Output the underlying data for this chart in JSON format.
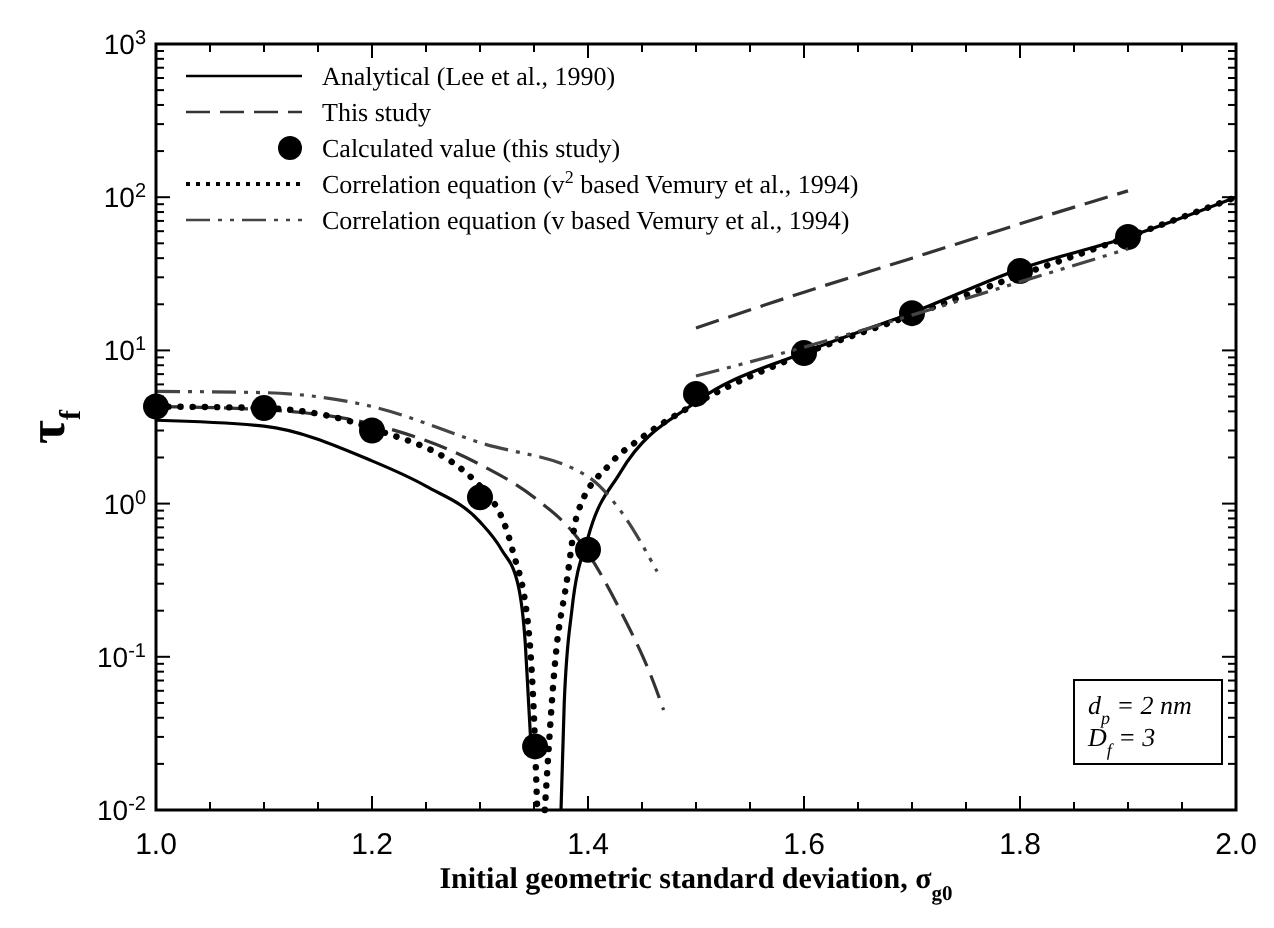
{
  "chart_data": {
    "type": "line",
    "xlabel": "Initial geometric standard deviation, σ$_{g0}$",
    "ylabel": "τ$_{f}$",
    "log": "y",
    "xlim": [
      1.0,
      2.0
    ],
    "ylim": [
      0.01,
      1000
    ],
    "xticks": [
      {
        "value": 1.0,
        "label": "1.0"
      },
      {
        "value": 1.05,
        "label": null
      },
      {
        "value": 1.1,
        "label": null
      },
      {
        "value": 1.15,
        "label": null
      },
      {
        "value": 1.2,
        "label": "1.2"
      },
      {
        "value": 1.25,
        "label": null
      },
      {
        "value": 1.3,
        "label": null
      },
      {
        "value": 1.35,
        "label": null
      },
      {
        "value": 1.4,
        "label": "1.4"
      },
      {
        "value": 1.45,
        "label": null
      },
      {
        "value": 1.5,
        "label": null
      },
      {
        "value": 1.55,
        "label": null
      },
      {
        "value": 1.6,
        "label": "1.6"
      },
      {
        "value": 1.65,
        "label": null
      },
      {
        "value": 1.7,
        "label": null
      },
      {
        "value": 1.75,
        "label": null
      },
      {
        "value": 1.8,
        "label": "1.8"
      },
      {
        "value": 1.85,
        "label": null
      },
      {
        "value": 1.9,
        "label": null
      },
      {
        "value": 1.95,
        "label": null
      },
      {
        "value": 2.0,
        "label": "2.0"
      }
    ],
    "yticks": [
      {
        "value": 0.01,
        "label": "10$^{-2}$"
      },
      {
        "value": 0.1,
        "label": "10$^{-1}$"
      },
      {
        "value": 1,
        "label": "10$^{0}$"
      },
      {
        "value": 10,
        "label": "10$^{1}$"
      },
      {
        "value": 100,
        "label": "10$^{2}$"
      },
      {
        "value": 1000,
        "label": "10$^{3}$"
      }
    ],
    "legend": "top left",
    "series": [
      {
        "name": "Analytical (Lee et al., 1990)",
        "color": "#000000",
        "line_style": "solid",
        "marker": "none",
        "x": [
          1.0,
          1.1,
          1.2,
          1.25,
          1.3,
          1.32,
          1.335,
          1.342,
          1.345,
          1.347,
          1.36,
          1.375,
          1.378,
          1.385,
          1.4,
          1.43,
          1.5,
          1.6,
          1.7,
          1.8,
          1.9,
          2.0
        ],
        "values": [
          3.5,
          3.2,
          1.9,
          1.3,
          0.76,
          0.5,
          0.3,
          0.12,
          0.05,
          0.028,
          null,
          0.01,
          0.05,
          0.2,
          0.6,
          1.6,
          4.6,
          9.7,
          17.6,
          34,
          55,
          100
        ]
      },
      {
        "name": "This study",
        "color": "#333333",
        "line_style": "dashed",
        "marker": "none",
        "x": [
          1.0,
          1.1,
          1.2,
          1.3,
          1.35,
          1.39,
          1.43,
          1.46,
          1.47,
          1.49,
          1.5,
          1.6,
          1.7,
          1.8,
          1.9
        ],
        "values": [
          4.3,
          4.1,
          3.3,
          1.8,
          1.1,
          0.6,
          0.2,
          0.07,
          0.045,
          null,
          14,
          24,
          40,
          67,
          110
        ]
      },
      {
        "name": "Calculated value (this study)",
        "type": "scatter",
        "color": "#000000",
        "marker": "circle",
        "x": [
          1.0,
          1.1,
          1.2,
          1.3,
          1.351,
          1.4,
          1.5,
          1.6,
          1.7,
          1.8,
          1.9
        ],
        "values": [
          4.3,
          4.2,
          3.0,
          1.1,
          0.026,
          0.5,
          5.2,
          9.6,
          17.5,
          33,
          55
        ]
      },
      {
        "name": "Correlation equation (v$^{2}$ based Vemury et al., 1994)",
        "color": "#000000",
        "line_style": "dotted",
        "marker": "none",
        "x": [
          1.0,
          1.1,
          1.2,
          1.3,
          1.33,
          1.345,
          1.35,
          1.353,
          1.356,
          1.36,
          1.37,
          1.38,
          1.39,
          1.42,
          1.45,
          1.5,
          1.6,
          1.7,
          1.8,
          1.9,
          2.0
        ],
        "values": [
          4.3,
          4.2,
          3.1,
          1.3,
          0.5,
          0.15,
          0.04,
          0.01,
          null,
          0.01,
          0.1,
          0.3,
          0.85,
          1.8,
          2.7,
          4.5,
          9.5,
          17,
          31,
          55,
          100
        ]
      },
      {
        "name": "Correlation equation (v based Vemury et al., 1994)",
        "color": "#444444",
        "line_style": "dashdot",
        "marker": "none",
        "x": [
          1.0,
          1.1,
          1.2,
          1.3,
          1.4,
          1.43,
          1.464,
          1.48,
          1.5,
          1.6,
          1.7,
          1.8,
          1.9
        ],
        "values": [
          5.4,
          5.3,
          4.3,
          2.5,
          1.5,
          0.9,
          0.36,
          null,
          6.8,
          10.5,
          17,
          28,
          46
        ]
      }
    ],
    "annotations": [
      "d$_{p}$ = 2 nm",
      "D$_{f}$ = 3"
    ]
  }
}
